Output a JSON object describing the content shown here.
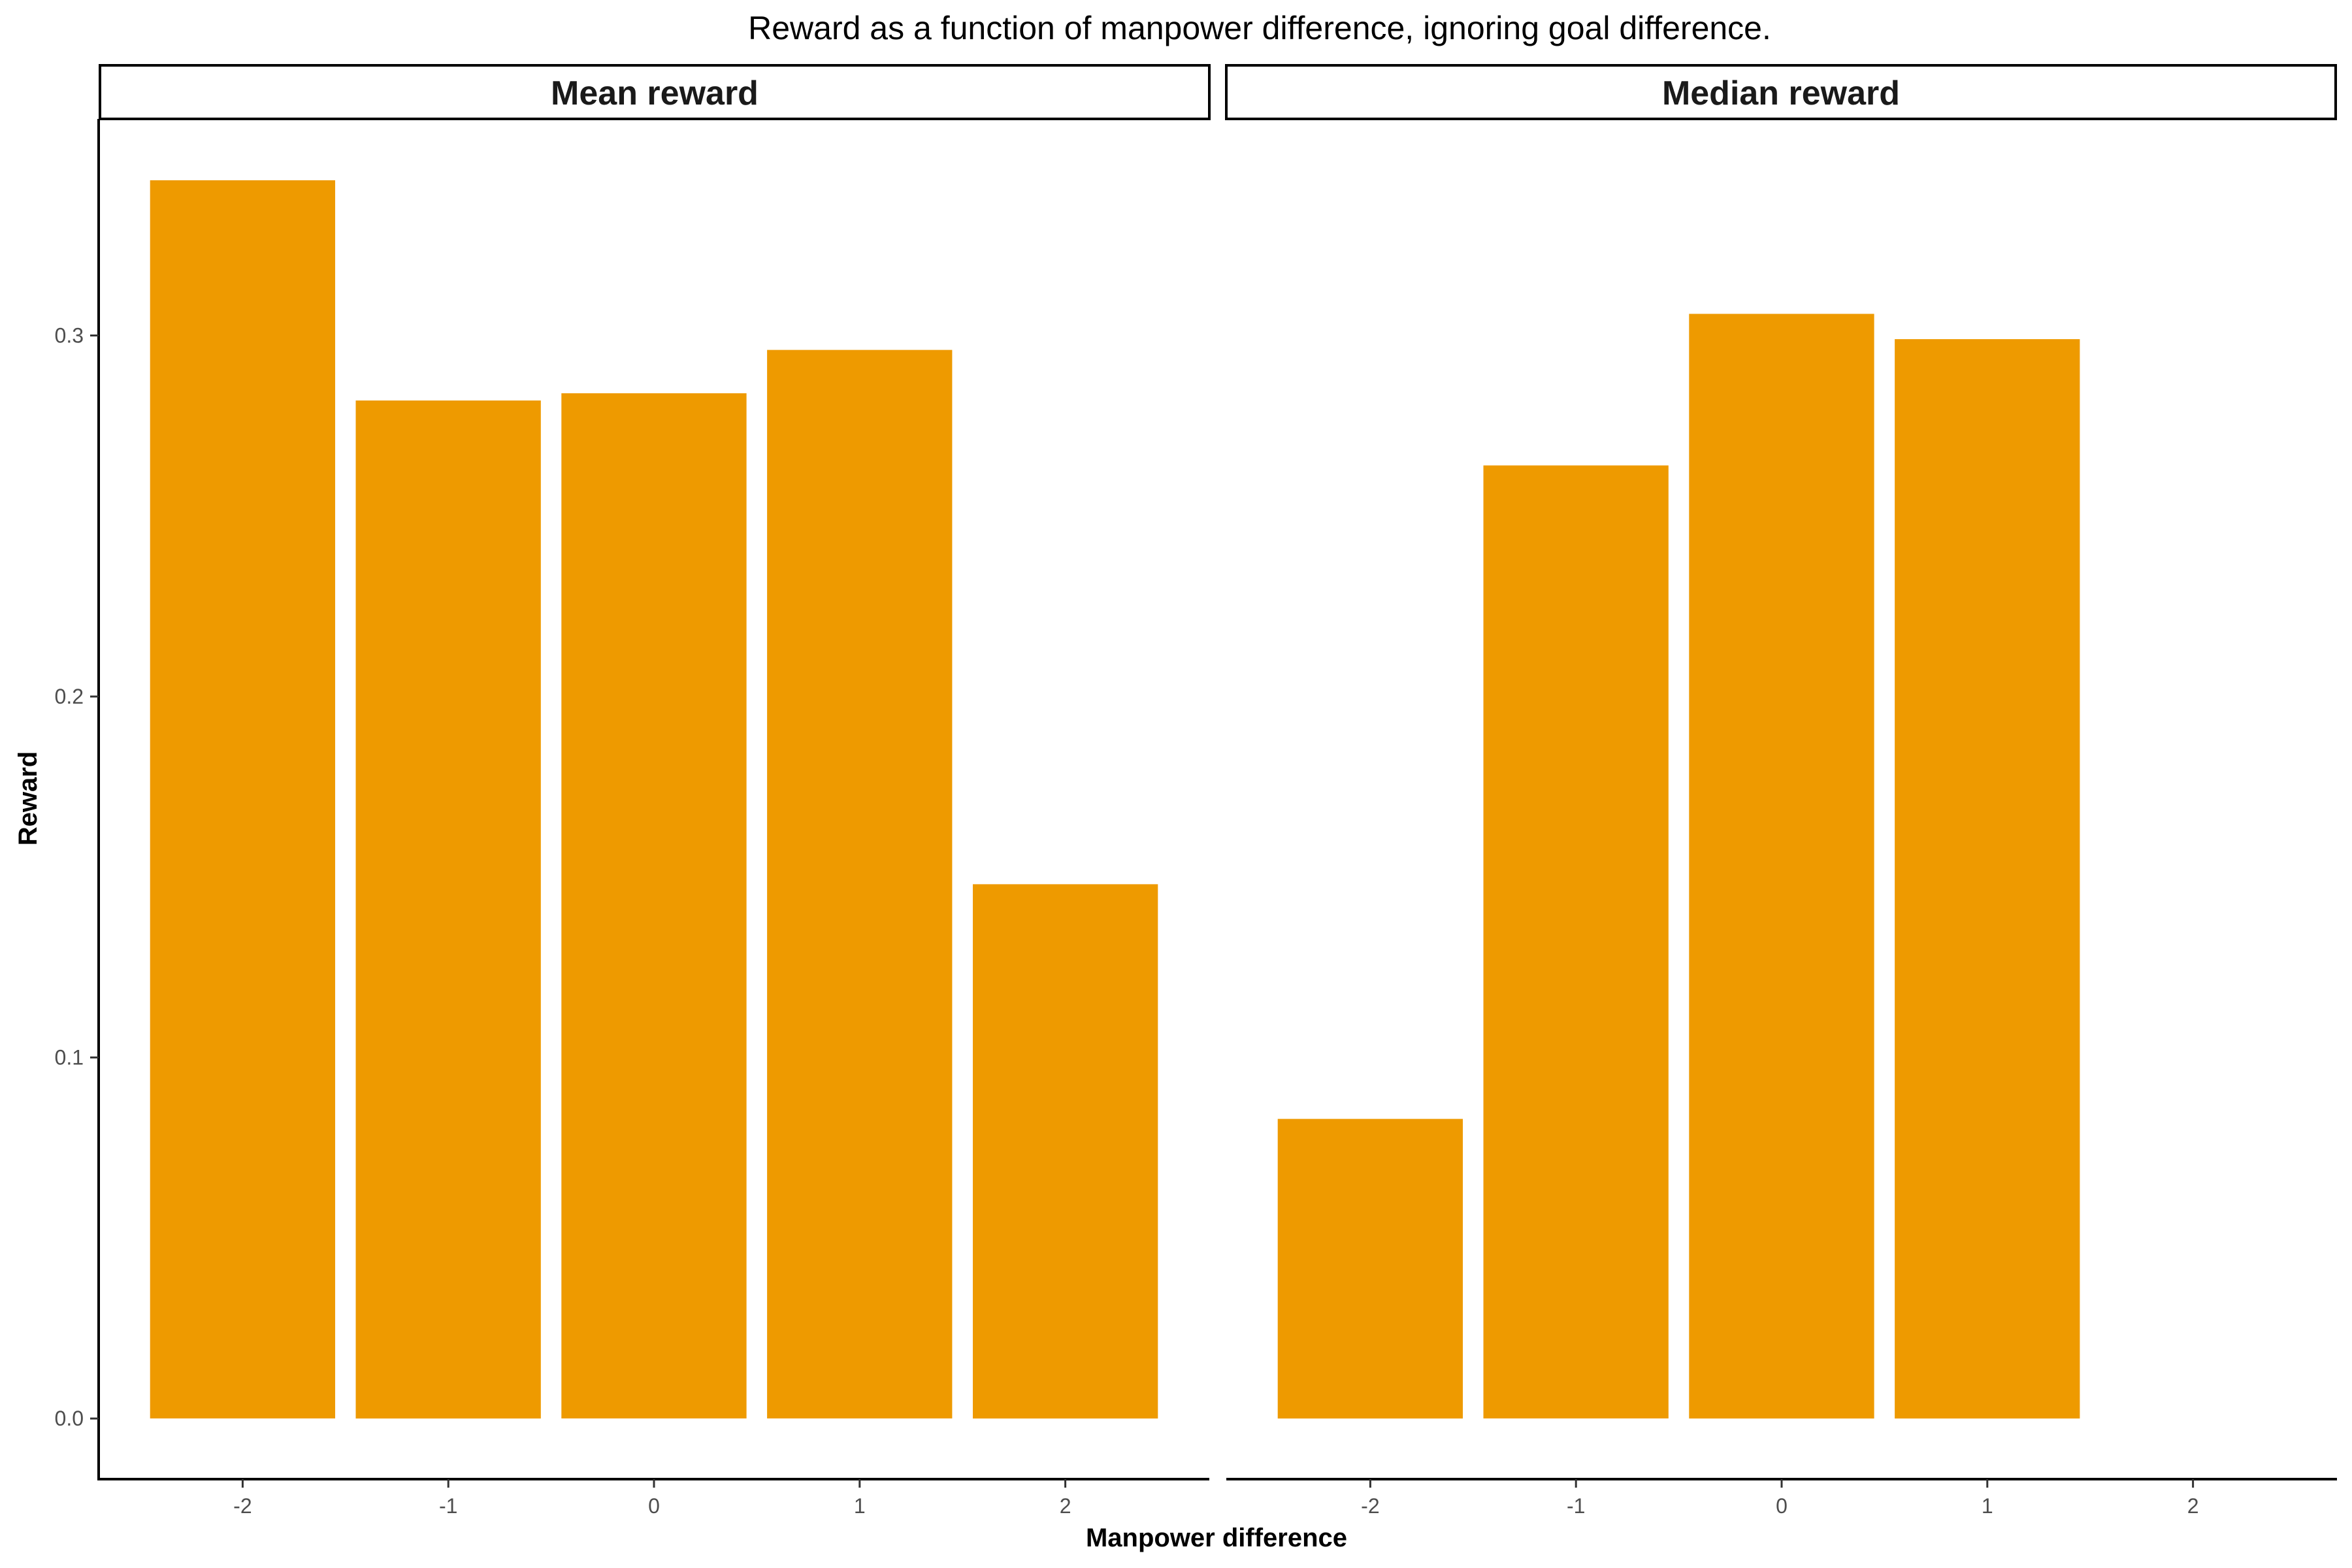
{
  "chart_data": {
    "type": "bar",
    "title": "Reward as a function of manpower difference, ignoring goal difference.",
    "xlabel": "Manpower difference",
    "ylabel": "Reward",
    "ylim": [
      -0.0168,
      0.36
    ],
    "yticks": [
      0.0,
      0.1,
      0.2,
      0.3
    ],
    "ytick_labels": [
      "0.0",
      "0.1",
      "0.2",
      "0.3"
    ],
    "categories": [
      "-2",
      "-1",
      "0",
      "1",
      "2"
    ],
    "bar_color": "#EE9A00",
    "grid": false,
    "facets": [
      {
        "label": "Mean reward",
        "values": [
          0.343,
          0.282,
          0.284,
          0.296,
          0.148
        ]
      },
      {
        "label": "Median reward",
        "values": [
          0.083,
          0.264,
          0.306,
          0.299,
          null
        ]
      }
    ]
  }
}
